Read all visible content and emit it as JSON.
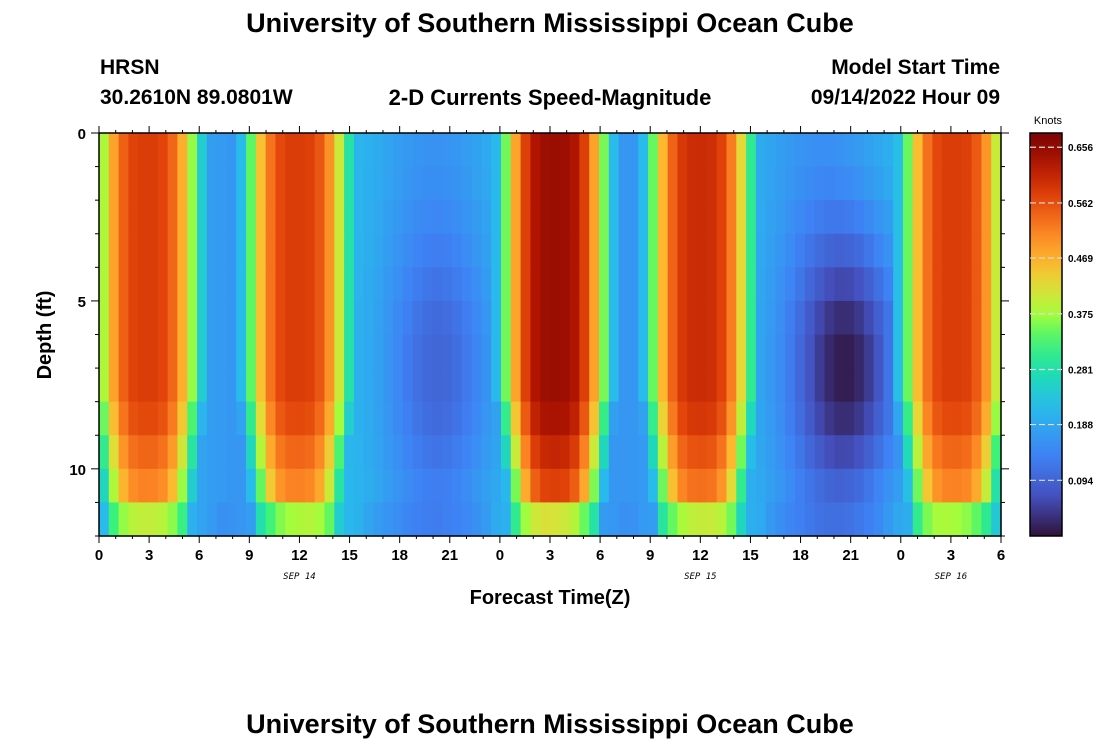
{
  "header": {
    "title": "University of Southern Mississippi Ocean Cube",
    "station": "HRSN",
    "coords": "30.2610N  89.0801W",
    "subtitle": "2-D Currents Speed-Magnitude",
    "model_start_label": "Model Start Time",
    "model_start_value": "09/14/2022 Hour 09"
  },
  "footer": {
    "title": "University of Southern Mississippi Ocean Cube"
  },
  "chart_data": {
    "type": "heatmap",
    "title": "2-D Currents Speed-Magnitude",
    "xlabel": "Forecast Time(Z)",
    "ylabel": "Depth (ft)",
    "x_range_hours": [
      0,
      54
    ],
    "y_range_ft": [
      0,
      12
    ],
    "x_ticks": [
      {
        "hour": 0,
        "label": "0"
      },
      {
        "hour": 3,
        "label": "3"
      },
      {
        "hour": 6,
        "label": "6"
      },
      {
        "hour": 9,
        "label": "9"
      },
      {
        "hour": 12,
        "label": "12"
      },
      {
        "hour": 15,
        "label": "15"
      },
      {
        "hour": 18,
        "label": "18"
      },
      {
        "hour": 21,
        "label": "21"
      },
      {
        "hour": 24,
        "label": "0"
      },
      {
        "hour": 27,
        "label": "3"
      },
      {
        "hour": 30,
        "label": "6"
      },
      {
        "hour": 33,
        "label": "9"
      },
      {
        "hour": 36,
        "label": "12"
      },
      {
        "hour": 39,
        "label": "15"
      },
      {
        "hour": 42,
        "label": "18"
      },
      {
        "hour": 45,
        "label": "21"
      },
      {
        "hour": 48,
        "label": "0"
      },
      {
        "hour": 51,
        "label": "3"
      },
      {
        "hour": 54,
        "label": "6"
      }
    ],
    "date_labels": [
      {
        "hour": 12,
        "label": "SEP 14"
      },
      {
        "hour": 36,
        "label": "SEP 15"
      },
      {
        "hour": 51,
        "label": "SEP 16"
      }
    ],
    "y_ticks": [
      {
        "depth": 0,
        "label": "0"
      },
      {
        "depth": 5,
        "label": "5"
      },
      {
        "depth": 10,
        "label": "10"
      }
    ],
    "colorbar": {
      "unit": "Knots",
      "min": 0.0,
      "max": 0.68,
      "ticks": [
        0.656,
        0.562,
        0.469,
        0.375,
        0.281,
        0.188,
        0.094
      ],
      "tick_labels": [
        "0.656",
        "0.562",
        "0.469",
        "0.375",
        "0.281",
        "0.188",
        "0.094"
      ]
    },
    "speed_peaks": [
      {
        "center_hour": 2.9,
        "peak_knots": 0.58
      },
      {
        "center_hour": 11.9,
        "peak_knots": 0.58
      },
      {
        "center_hour": 27.3,
        "peak_knots": 0.65
      },
      {
        "center_hour": 36.0,
        "peak_knots": 0.6
      },
      {
        "center_hour": 51.2,
        "peak_knots": 0.58
      }
    ],
    "speed_minima": [
      {
        "center_hour": 20.5,
        "min_knots": 0.12
      },
      {
        "center_hour": 45.0,
        "min_knots": 0.02
      }
    ]
  }
}
